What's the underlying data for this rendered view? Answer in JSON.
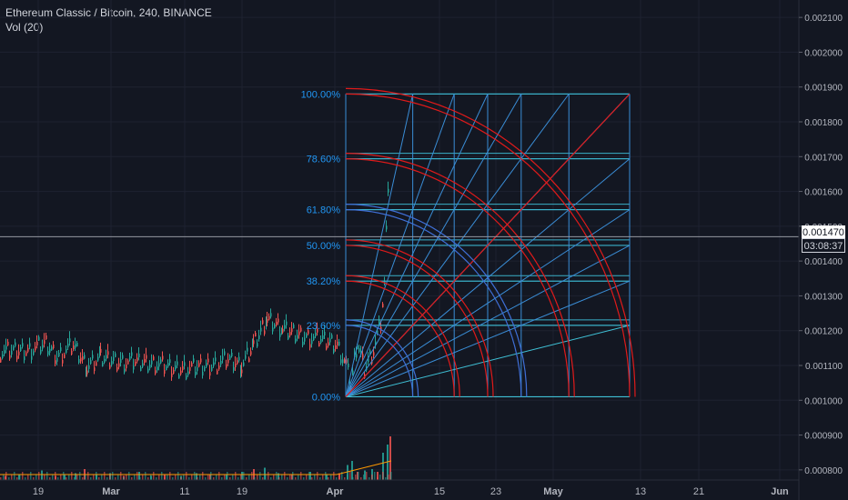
{
  "header": {
    "symbol_title": "Ethereum Classic / Bitcoin, 240, BINANCE",
    "volume_label": "Vol (20)"
  },
  "chart_data": {
    "type": "candlestick",
    "price_axis": {
      "min": 0.00075,
      "max": 0.00215,
      "ticks": [
        "0.002100",
        "0.002000",
        "0.001900",
        "0.001800",
        "0.001700",
        "0.001600",
        "0.001500",
        "0.001400",
        "0.001300",
        "0.001200",
        "0.001100",
        "0.001000",
        "0.000900",
        "0.000800"
      ]
    },
    "time_axis": {
      "ticks": [
        "19",
        "Mar",
        "11",
        "19",
        "Apr",
        "15",
        "23",
        "May",
        "13",
        "21",
        "Jun"
      ]
    },
    "last_price": "0.001470",
    "countdown": "03:08:37",
    "price_series": [
      [
        0,
        0.001138
      ],
      [
        30,
        0.001142
      ],
      [
        50,
        0.00116
      ],
      [
        62,
        0.001125
      ],
      [
        80,
        0.001155
      ],
      [
        95,
        0.001095
      ],
      [
        110,
        0.001118
      ],
      [
        130,
        0.00111
      ],
      [
        150,
        0.001108
      ],
      [
        170,
        0.001105
      ],
      [
        190,
        0.001088
      ],
      [
        210,
        0.00109
      ],
      [
        230,
        0.001097
      ],
      [
        250,
        0.001115
      ],
      [
        265,
        0.001098
      ],
      [
        278,
        0.001155
      ],
      [
        293,
        0.001228
      ],
      [
        310,
        0.0012
      ],
      [
        330,
        0.001185
      ],
      [
        350,
        0.001175
      ],
      [
        370,
        0.00116
      ],
      [
        380,
        0.0011
      ],
      [
        385,
        0.00104
      ],
      [
        392,
        0.00117
      ],
      [
        400,
        0.00109
      ],
      [
        410,
        0.001145
      ],
      [
        418,
        0.00122
      ],
      [
        422,
        0.00133
      ],
      [
        426,
        0.00162
      ],
      [
        428,
        0.00152
      ]
    ],
    "volume_bars": [
      [
        5,
        0.15
      ],
      [
        20,
        0.2
      ],
      [
        45,
        0.35
      ],
      [
        60,
        0.15
      ],
      [
        70,
        0.2
      ],
      [
        82,
        0.25
      ],
      [
        92,
        0.4
      ],
      [
        105,
        0.2
      ],
      [
        120,
        0.25
      ],
      [
        135,
        0.15
      ],
      [
        152,
        0.3
      ],
      [
        165,
        0.15
      ],
      [
        180,
        0.2
      ],
      [
        198,
        0.15
      ],
      [
        215,
        0.25
      ],
      [
        230,
        0.2
      ],
      [
        248,
        0.2
      ],
      [
        265,
        0.3
      ],
      [
        278,
        0.4
      ],
      [
        290,
        0.45
      ],
      [
        305,
        0.25
      ],
      [
        320,
        0.2
      ],
      [
        340,
        0.3
      ],
      [
        358,
        0.2
      ],
      [
        372,
        0.25
      ],
      [
        381,
        0.55
      ],
      [
        386,
        0.7
      ],
      [
        392,
        0.3
      ],
      [
        400,
        0.35
      ],
      [
        408,
        0.4
      ],
      [
        414,
        0.3
      ],
      [
        420,
        1.0
      ],
      [
        425,
        1.3
      ],
      [
        428,
        1.6
      ]
    ],
    "fib_levels": [
      {
        "label": "100.00%"
      },
      {
        "label": "78.60%"
      },
      {
        "label": "61.80%"
      },
      {
        "label": "50.00%"
      },
      {
        "label": "38.20%"
      },
      {
        "label": "23.60%"
      },
      {
        "label": "0.00%"
      }
    ],
    "colors": {
      "background": "#131722",
      "grid": "#1e2230",
      "up": "#26a69a",
      "down": "#ef5350",
      "fib_line": "#3a8dd6",
      "fib_level": "#3ab0c8",
      "fib_label": "#2196f3",
      "arc_red": "#e01a1a",
      "arc_blue": "#3f6fd6"
    }
  }
}
